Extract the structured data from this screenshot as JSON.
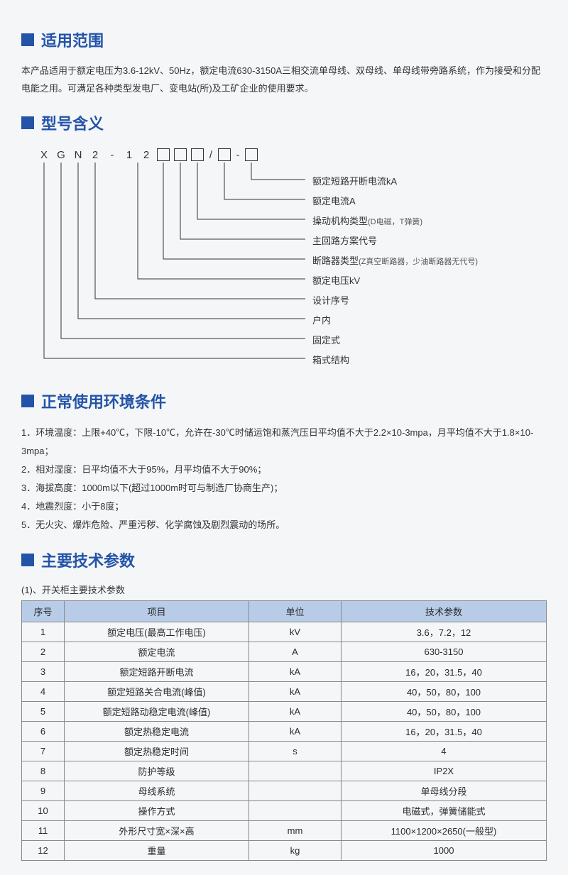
{
  "sections": {
    "scope": {
      "title": "适用范围"
    },
    "model": {
      "title": "型号含义"
    },
    "env": {
      "title": "正常使用环境条件"
    },
    "spec": {
      "title": "主要技术参数"
    }
  },
  "scope_text": "本产品适用于额定电压为3.6-12kV、50Hz，额定电流630-3150A三相交流单母线、双母线、单母线带旁路系统，作为接受和分配电能之用。可满足各种类型发电厂、变电站(所)及工矿企业的使用要求。",
  "model_code": [
    "X",
    "G",
    "N",
    "2",
    "-",
    "1",
    "2"
  ],
  "model_labels": [
    {
      "text": "额定短路开断电流kA",
      "sub": ""
    },
    {
      "text": "额定电流A",
      "sub": ""
    },
    {
      "text": "操动机构类型",
      "sub": "(D电磁，T弹簧)"
    },
    {
      "text": "主回路方案代号",
      "sub": ""
    },
    {
      "text": "断路器类型",
      "sub": "(Z真空断路器，少油断路器无代号)"
    },
    {
      "text": "额定电压kV",
      "sub": ""
    },
    {
      "text": "设计序号",
      "sub": ""
    },
    {
      "text": "户内",
      "sub": ""
    },
    {
      "text": "固定式",
      "sub": ""
    },
    {
      "text": "箱式结构",
      "sub": ""
    }
  ],
  "env_items": [
    "1．环境温度：上限+40℃，下限-10℃，允许在-30℃时储运饱和蒸汽压日平均值不大于2.2×10-3mpa，月平均值不大于1.8×10-3mpa；",
    "2．相对湿度：日平均值不大于95%，月平均值不大于90%；",
    "3．海拔高度：1000m以下(超过1000m时可与制造厂协商生产)；",
    "4．地震烈度：小于8度；",
    "5．无火灾、爆炸危险、严重污秽、化学腐蚀及剧烈震动的场所。"
  ],
  "spec_caption": "(1)、开关柜主要技术参数",
  "spec_headers": [
    "序号",
    "项目",
    "单位",
    "技术参数"
  ],
  "spec_rows": [
    [
      "1",
      "额定电压(最高工作电压)",
      "kV",
      "3.6，7.2，12"
    ],
    [
      "2",
      "额定电流",
      "A",
      "630-3150"
    ],
    [
      "3",
      "额定短路开断电流",
      "kA",
      "16，20，31.5，40"
    ],
    [
      "4",
      "额定短路关合电流(峰值)",
      "kA",
      "40，50，80，100"
    ],
    [
      "5",
      "额定短路动稳定电流(峰值)",
      "kA",
      "40，50，80，100"
    ],
    [
      "6",
      "额定热稳定电流",
      "kA",
      "16，20，31.5，40"
    ],
    [
      "7",
      "额定热稳定时间",
      "s",
      "4"
    ],
    [
      "8",
      "防护等级",
      "",
      "IP2X"
    ],
    [
      "9",
      "母线系统",
      "",
      "单母线分段"
    ],
    [
      "10",
      "操作方式",
      "",
      "电磁式，弹簧储能式"
    ],
    [
      "11",
      "外形尺寸宽×深×高",
      "mm",
      "1100×1200×2650(一般型)"
    ],
    [
      "12",
      "重量",
      "kg",
      "1000"
    ]
  ],
  "colors": {
    "primary": "#2354a8",
    "table_header_bg": "#b8cce8",
    "border": "#888888",
    "text": "#2a2a2a",
    "bg": "#f5f6f8"
  }
}
